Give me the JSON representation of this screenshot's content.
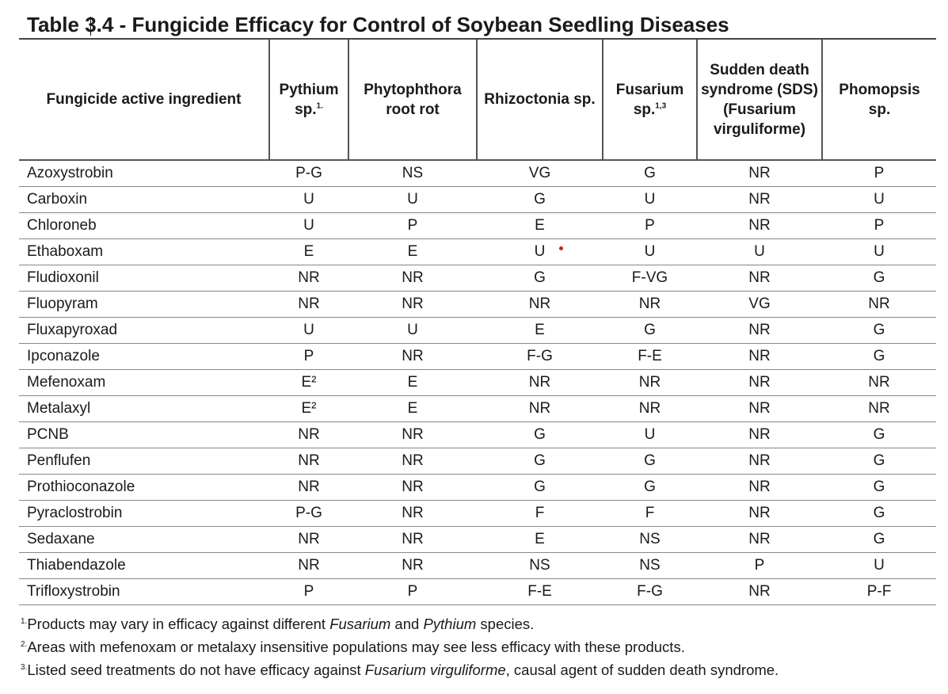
{
  "title": "Table 3.4 - Fungicide Efficacy for Control of Soybean Seedling Diseases",
  "headers": [
    {
      "text": "Fungicide active ingredient",
      "sup": ""
    },
    {
      "text": "Pythium sp.",
      "sup": "1."
    },
    {
      "text": "Phytophthora root rot",
      "sup": ""
    },
    {
      "text": "Rhizoctonia sp.",
      "sup": ""
    },
    {
      "text": "Fusarium sp.",
      "sup": "1,3"
    },
    {
      "text": "Sudden death syndrome (SDS) (Fusarium virguliforme)",
      "sup": ""
    },
    {
      "text": "Phomopsis sp.",
      "sup": ""
    }
  ],
  "rows": [
    [
      "Azoxystrobin",
      "P-G",
      "NS",
      "VG",
      "G",
      "NR",
      "P"
    ],
    [
      "Carboxin",
      "U",
      "U",
      "G",
      "U",
      "NR",
      "U"
    ],
    [
      "Chloroneb",
      "U",
      "P",
      "E",
      "P",
      "NR",
      "P"
    ],
    [
      "Ethaboxam",
      "E",
      "E",
      "U",
      "U",
      "U",
      "U"
    ],
    [
      "Fludioxonil",
      "NR",
      "NR",
      "G",
      "F-VG",
      "NR",
      "G"
    ],
    [
      "Fluopyram",
      "NR",
      "NR",
      "NR",
      "NR",
      "VG",
      "NR"
    ],
    [
      "Fluxapyroxad",
      "U",
      "U",
      "E",
      "G",
      "NR",
      "G"
    ],
    [
      "Ipconazole",
      "P",
      "NR",
      "F-G",
      "F-E",
      "NR",
      "G"
    ],
    [
      "Mefenoxam",
      "E²",
      "E",
      "NR",
      "NR",
      "NR",
      "NR"
    ],
    [
      "Metalaxyl",
      "E²",
      "E",
      "NR",
      "NR",
      "NR",
      "NR"
    ],
    [
      "PCNB",
      "NR",
      "NR",
      "G",
      "U",
      "NR",
      "G"
    ],
    [
      "Penflufen",
      "NR",
      "NR",
      "G",
      "G",
      "NR",
      "G"
    ],
    [
      "Prothioconazole",
      "NR",
      "NR",
      "G",
      "G",
      "NR",
      "G"
    ],
    [
      "Pyraclostrobin",
      "P-G",
      "NR",
      "F",
      "F",
      "NR",
      "G"
    ],
    [
      "Sedaxane",
      "NR",
      "NR",
      "E",
      "NS",
      "NR",
      "G"
    ],
    [
      "Thiabendazole",
      "NR",
      "NR",
      "NS",
      "NS",
      "P",
      "U"
    ],
    [
      "Trifloxystrobin",
      "P",
      "P",
      "F-E",
      "F-G",
      "NR",
      "P-F"
    ]
  ],
  "footnotes": [
    {
      "mark": "1.",
      "parts": [
        [
          "Products may vary in efficacy against different ",
          false
        ],
        [
          "Fusarium",
          true
        ],
        [
          " and ",
          false
        ],
        [
          "Pythium",
          true
        ],
        [
          " species.",
          false
        ]
      ]
    },
    {
      "mark": "2.",
      "parts": [
        [
          "Areas with mefenoxam or metalaxy insensitive populations may see less efficacy with these products.",
          false
        ]
      ]
    },
    {
      "mark": "3.",
      "parts": [
        [
          "Listed seed treatments do not have efficacy against ",
          false
        ],
        [
          "Fusarium virguliforme",
          true
        ],
        [
          ", causal agent of sudden death syndrome.",
          false
        ]
      ]
    }
  ],
  "colors": {
    "text": "#1a1a1a",
    "rule": "#888888",
    "marker_dot": "#cc2020"
  }
}
